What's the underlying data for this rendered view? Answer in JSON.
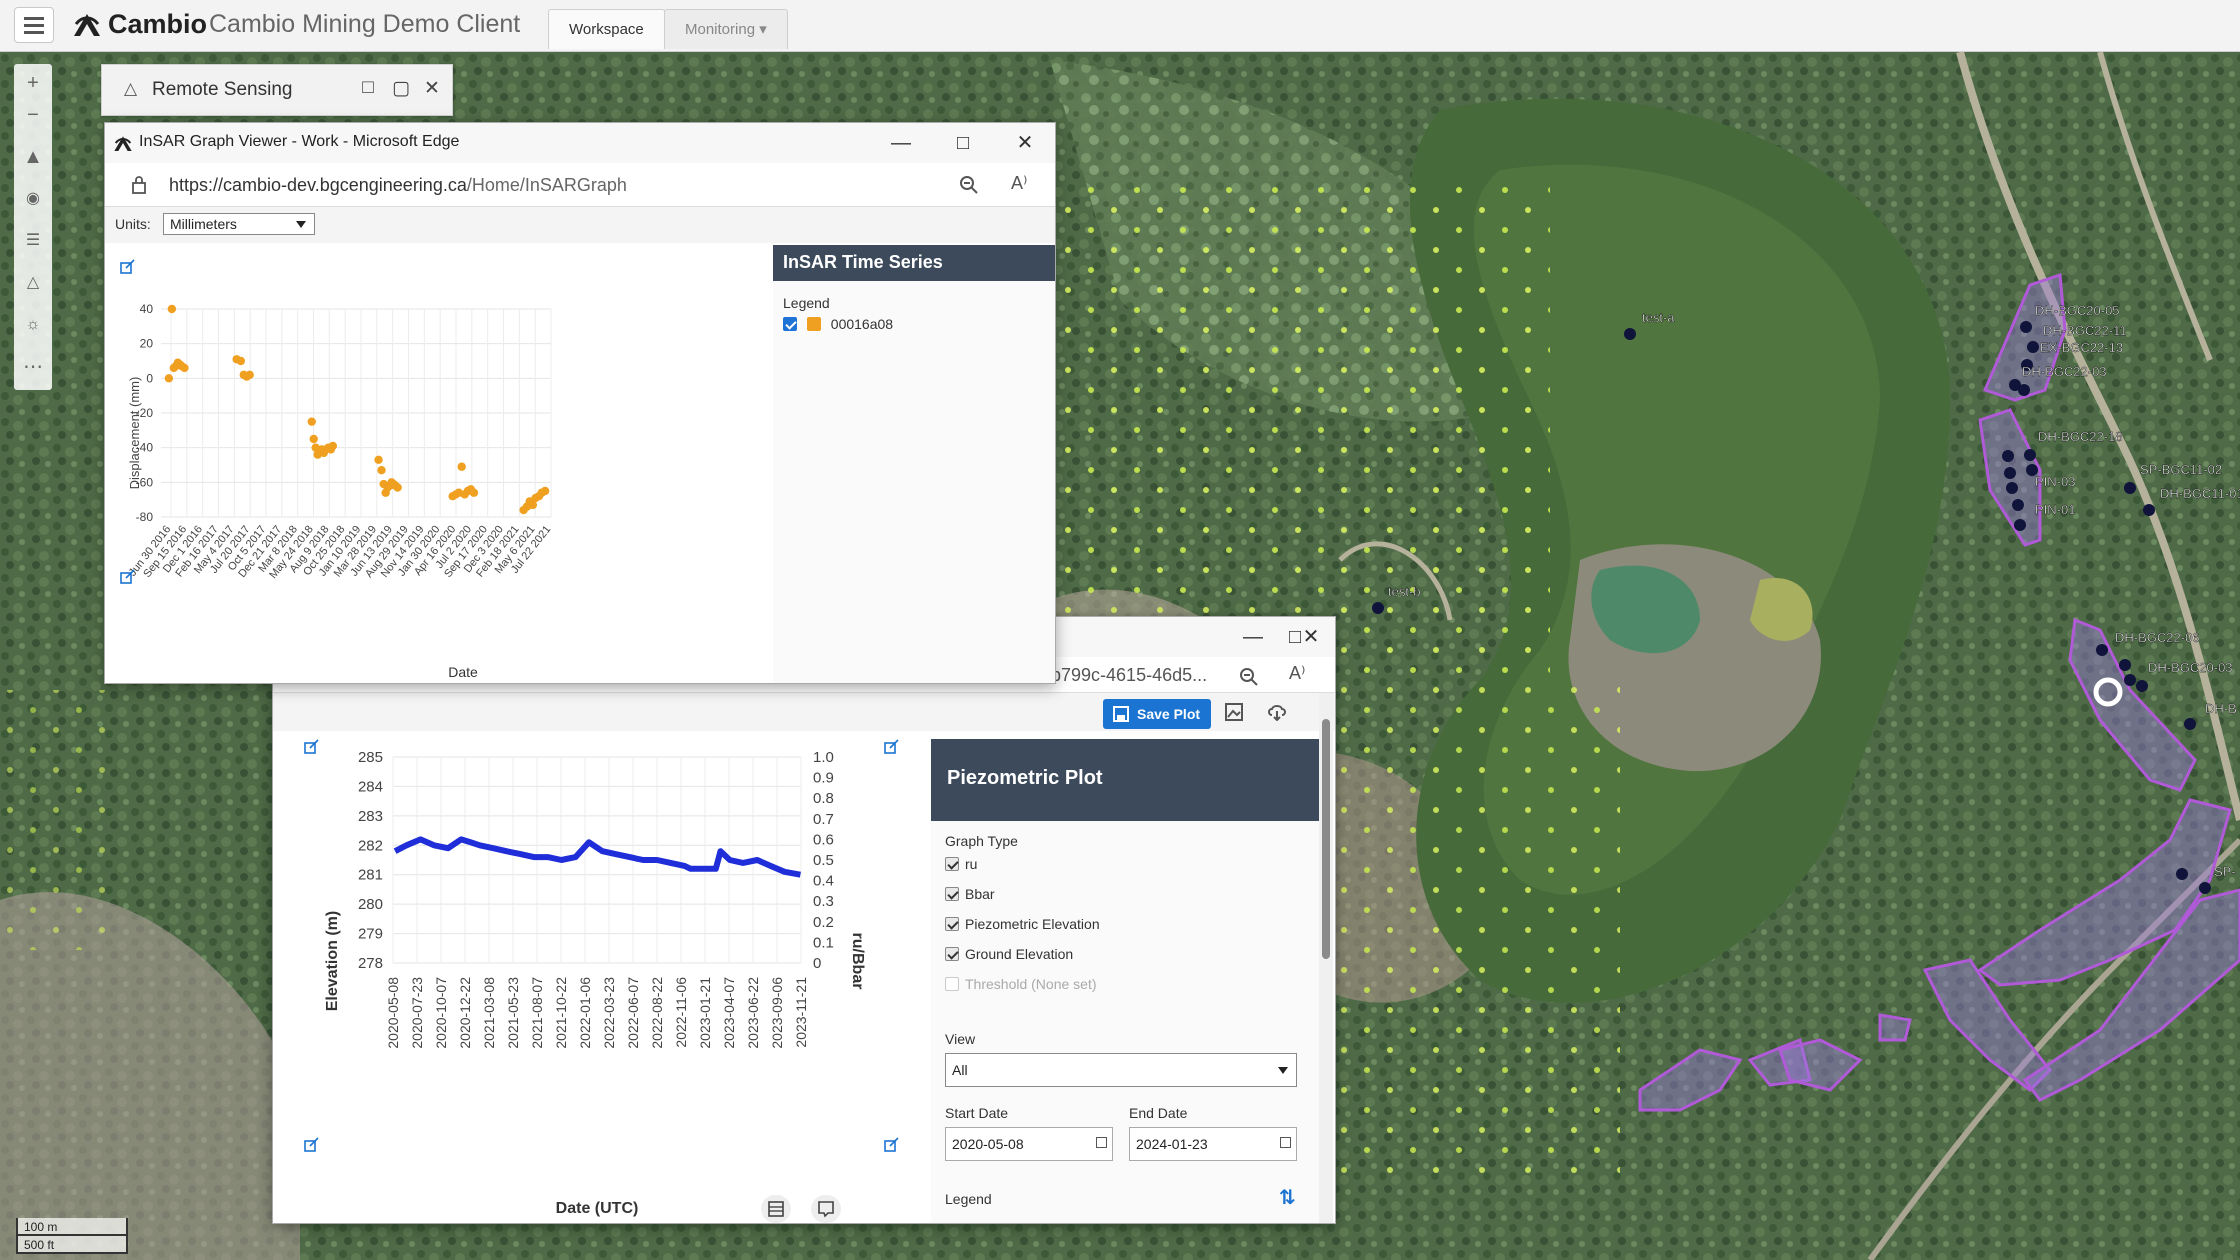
{
  "app": {
    "brand": "Cambio",
    "title": "Cambio Mining Demo Client",
    "tabs": [
      {
        "label": "Workspace",
        "active": true
      },
      {
        "label": "Monitoring ▾",
        "active": false
      }
    ]
  },
  "remote_sensing": {
    "title": "Remote Sensing"
  },
  "scale": {
    "metric": "100 m",
    "imperial": "500 ft"
  },
  "map_labels": {
    "test_a": "test-a",
    "test_b": "test-b",
    "bh1": "DH-BGC20-05",
    "bh2": "DH-BGC22-11",
    "bh3": "EX-BGC22-13",
    "bh4": "DH-BGC22-03",
    "bh5": "DH-BGC22-18",
    "bh6": "SP-BGC11-02",
    "bh7": "DH-BGC11-01",
    "pin03": "PIN-03",
    "pin01": "PIN-01",
    "bh8": "DH-BGC22-06",
    "bh9": "DH-BGC20-03",
    "bh10": "DH-B",
    "bh11": "SP-"
  },
  "insar_window": {
    "title": "InSAR Graph Viewer - Work - Microsoft Edge",
    "url_host": "https://cambio-dev.bgcengineering.ca",
    "url_path": "/Home/InSARGraph",
    "units_label": "Units:",
    "units_value": "Millimeters",
    "panel_title": "InSAR Time Series",
    "legend_title": "Legend",
    "legend_item": "00016a08",
    "legend_color": "#f0a020"
  },
  "piezo_window": {
    "url_fragment": "b799c-4615-46d5...",
    "save_label": "Save Plot",
    "panel_title": "Piezometric Plot",
    "graph_type_label": "Graph Type",
    "options": [
      {
        "label": "ru",
        "checked": true,
        "enabled": true
      },
      {
        "label": "Bbar",
        "checked": true,
        "enabled": true
      },
      {
        "label": "Piezometric Elevation",
        "checked": true,
        "enabled": true
      },
      {
        "label": "Ground Elevation",
        "checked": true,
        "enabled": true
      },
      {
        "label": "Threshold (None set)",
        "checked": false,
        "enabled": false
      }
    ],
    "view_label": "View",
    "view_value": "All",
    "start_date_label": "Start Date",
    "start_date_value": "2020-05-08",
    "end_date_label": "End Date",
    "end_date_value": "2024-01-23",
    "legend_label": "Legend"
  },
  "chart_data": [
    {
      "type": "scatter",
      "title": "",
      "xlabel": "Date",
      "ylabel": "Displacement (mm)",
      "ylim": [
        -80,
        40
      ],
      "yticks": [
        40,
        20,
        0,
        -20,
        -40,
        -60,
        -80
      ],
      "xticks": [
        "Jun 30 2016",
        "Sep 15 2016",
        "Dec 1 2016",
        "Feb 16 2017",
        "May 4 2017",
        "Jul 20 2017",
        "Oct 5 2017",
        "Dec 21 2017",
        "Mar 8 2018",
        "May 24 2018",
        "Aug 9 2018",
        "Oct 25 2018",
        "Jan 10 2019",
        "Mar 28 2019",
        "Jun 13 2019",
        "Aug 29 2019",
        "Nov 14 2019",
        "Jan 30 2020",
        "Apr 16 2020",
        "Jul 2 2020",
        "Sep 17 2020",
        "Dec 3 2020",
        "Feb 18 2021",
        "May 6 2021",
        "Jul 22 2021"
      ],
      "series": [
        {
          "name": "00016a08",
          "color": "#f0a020",
          "points": [
            {
              "x": "2016-06-10",
              "y": 0
            },
            {
              "x": "2016-06-25",
              "y": 40
            },
            {
              "x": "2016-07-05",
              "y": 6
            },
            {
              "x": "2016-07-15",
              "y": 7
            },
            {
              "x": "2016-07-25",
              "y": 9
            },
            {
              "x": "2016-08-05",
              "y": 8
            },
            {
              "x": "2016-08-15",
              "y": 7
            },
            {
              "x": "2016-08-28",
              "y": 6
            },
            {
              "x": "2017-05-20",
              "y": 11
            },
            {
              "x": "2017-06-10",
              "y": 10
            },
            {
              "x": "2017-06-25",
              "y": 2
            },
            {
              "x": "2017-07-10",
              "y": 1
            },
            {
              "x": "2017-07-25",
              "y": 2
            },
            {
              "x": "2018-06-05",
              "y": -25
            },
            {
              "x": "2018-06-15",
              "y": -35
            },
            {
              "x": "2018-06-25",
              "y": -40
            },
            {
              "x": "2018-07-05",
              "y": -44
            },
            {
              "x": "2018-07-15",
              "y": -42
            },
            {
              "x": "2018-07-25",
              "y": -41
            },
            {
              "x": "2018-08-05",
              "y": -43
            },
            {
              "x": "2018-08-15",
              "y": -41
            },
            {
              "x": "2018-08-28",
              "y": -40
            },
            {
              "x": "2018-09-10",
              "y": -41
            },
            {
              "x": "2018-09-20",
              "y": -39
            },
            {
              "x": "2019-05-10",
              "y": -47
            },
            {
              "x": "2019-05-25",
              "y": -53
            },
            {
              "x": "2019-06-05",
              "y": -61
            },
            {
              "x": "2019-06-15",
              "y": -66
            },
            {
              "x": "2019-06-25",
              "y": -63
            },
            {
              "x": "2019-07-05",
              "y": -62
            },
            {
              "x": "2019-07-15",
              "y": -60
            },
            {
              "x": "2019-07-25",
              "y": -61
            },
            {
              "x": "2019-08-05",
              "y": -62
            },
            {
              "x": "2019-08-15",
              "y": -63
            },
            {
              "x": "2020-05-20",
              "y": -68
            },
            {
              "x": "2020-06-05",
              "y": -67
            },
            {
              "x": "2020-06-20",
              "y": -66
            },
            {
              "x": "2020-07-05",
              "y": -51
            },
            {
              "x": "2020-07-20",
              "y": -67
            },
            {
              "x": "2020-08-05",
              "y": -65
            },
            {
              "x": "2020-08-20",
              "y": -64
            },
            {
              "x": "2020-09-05",
              "y": -66
            },
            {
              "x": "2021-05-15",
              "y": -76
            },
            {
              "x": "2021-06-01",
              "y": -74
            },
            {
              "x": "2021-06-15",
              "y": -71
            },
            {
              "x": "2021-07-01",
              "y": -73
            },
            {
              "x": "2021-07-15",
              "y": -69
            },
            {
              "x": "2021-08-01",
              "y": -68
            },
            {
              "x": "2021-08-15",
              "y": -66
            },
            {
              "x": "2021-09-01",
              "y": -65
            }
          ]
        }
      ]
    },
    {
      "type": "line",
      "title": "",
      "xlabel": "Date (UTC)",
      "ylabel": "Elevation (m)",
      "y2label": "ru/Bbar",
      "ylim": [
        278,
        285
      ],
      "y2lim": [
        0,
        1.0
      ],
      "yticks": [
        285,
        284,
        283,
        282,
        281,
        280,
        279,
        278
      ],
      "y2ticks": [
        "1.0",
        "0.9",
        "0.8",
        "0.7",
        "0.6",
        "0.5",
        "0.4",
        "0.3",
        "0.2",
        "0.1",
        "0"
      ],
      "xticks": [
        "2020-05-08",
        "2020-07-23",
        "2020-10-07",
        "2020-12-22",
        "2021-03-08",
        "2021-05-23",
        "2021-08-07",
        "2021-10-22",
        "2022-01-06",
        "2022-03-23",
        "2022-06-07",
        "2022-08-22",
        "2022-11-06",
        "2023-01-21",
        "2023-04-07",
        "2023-06-22",
        "2023-09-06",
        "2023-11-21"
      ],
      "series": [
        {
          "name": "",
          "color": "#1f2ed8",
          "x": [
            "2020-05-08",
            "2020-06-15",
            "2020-08-01",
            "2020-09-15",
            "2020-11-01",
            "2020-12-15",
            "2021-01-15",
            "2021-02-15",
            "2021-04-01",
            "2021-05-15",
            "2021-07-01",
            "2021-08-15",
            "2021-10-01",
            "2021-11-15",
            "2022-01-01",
            "2022-02-15",
            "2022-04-01",
            "2022-05-15",
            "2022-07-01",
            "2022-08-15",
            "2022-10-01",
            "2022-11-15",
            "2023-01-01",
            "2023-01-21",
            "2023-03-01",
            "2023-04-15",
            "2023-05-01",
            "2023-06-01",
            "2023-07-15",
            "2023-09-01",
            "2023-10-15",
            "2023-12-01",
            "2024-01-23"
          ],
          "values": [
            281.8,
            282.0,
            282.2,
            282.0,
            281.9,
            282.2,
            282.1,
            282.0,
            281.9,
            281.8,
            281.7,
            281.6,
            281.6,
            281.5,
            281.6,
            282.1,
            281.8,
            281.7,
            281.6,
            281.5,
            281.5,
            281.4,
            281.3,
            281.2,
            281.2,
            281.2,
            281.8,
            281.5,
            281.4,
            281.5,
            281.3,
            281.1,
            281.0
          ]
        }
      ]
    }
  ]
}
